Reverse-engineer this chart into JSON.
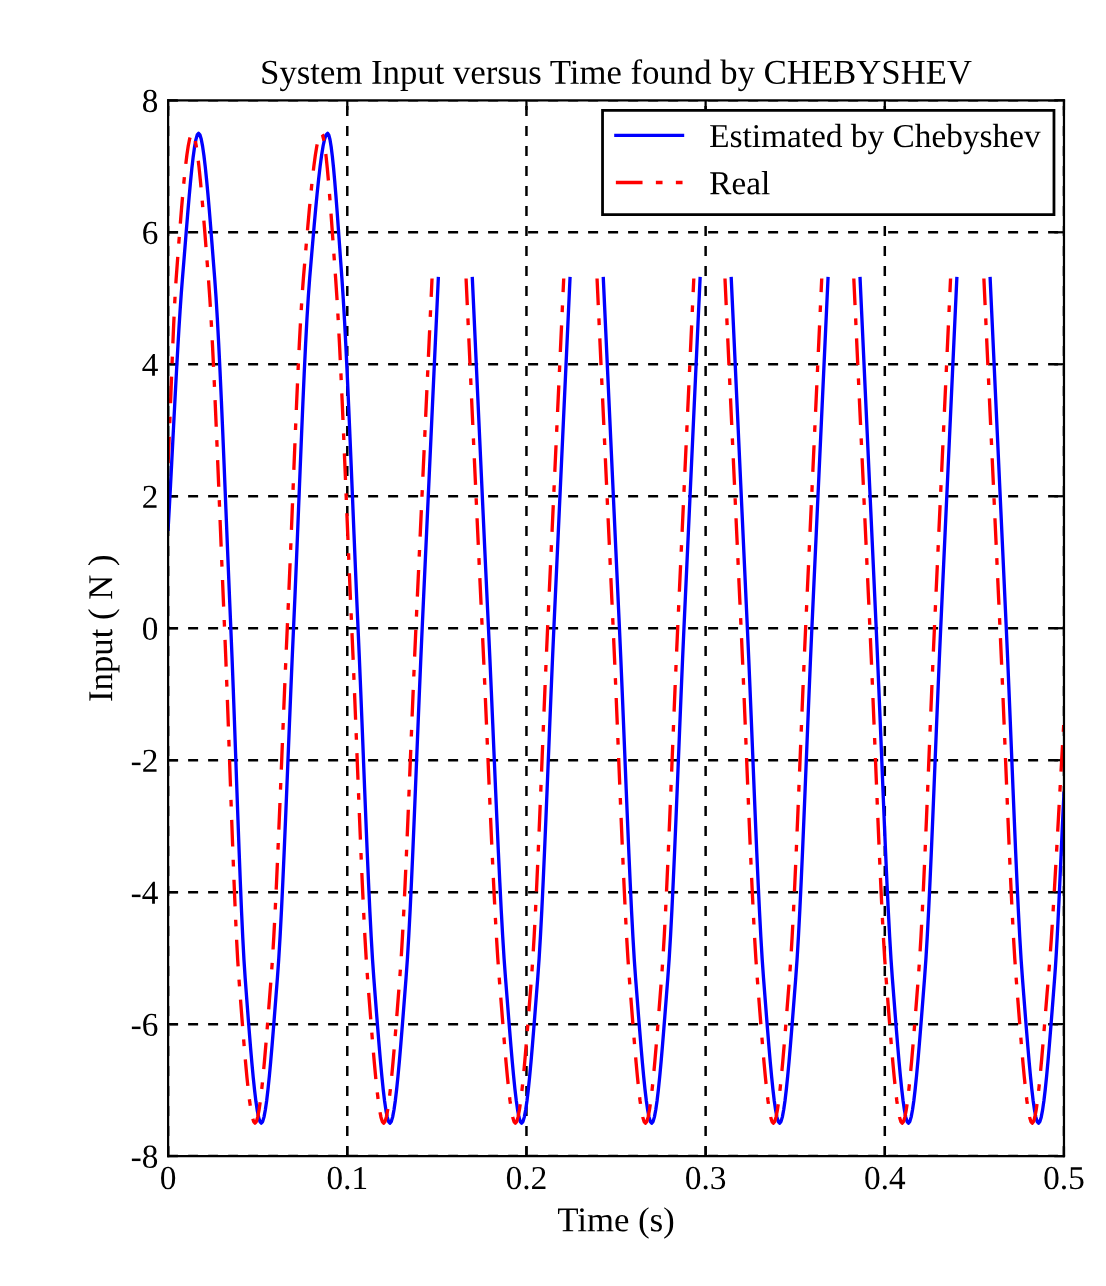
{
  "chart_data": {
    "type": "line",
    "title": "System Input versus Time found by CHEBYSHEV",
    "xlabel": "Time (s)",
    "ylabel": "Input ( N )",
    "xlim": [
      0,
      0.5
    ],
    "xticks": [
      0,
      0.1,
      0.2,
      0.3,
      0.4,
      0.5
    ],
    "ylim": [
      -8,
      8
    ],
    "yticks": [
      -8,
      -6,
      -4,
      -2,
      0,
      2,
      4,
      6,
      8
    ],
    "grid": true,
    "legend": "top right",
    "series": [
      {
        "name": "Estimated by Chebyshev",
        "color": "#0000ff",
        "line_style": "solid",
        "x": [
          0.0,
          0.008,
          0.017,
          0.026,
          0.035,
          0.043,
          0.052,
          0.061,
          0.07,
          0.079,
          0.089,
          0.097,
          0.106,
          0.1148,
          0.1238,
          0.1328,
          0.1418,
          0.1508,
          0.1605,
          0.1698,
          0.1788,
          0.1883,
          0.1973,
          0.2063,
          0.2153,
          0.2243,
          0.2335,
          0.2429,
          0.2519,
          0.2609,
          0.2699,
          0.2789,
          0.2879,
          0.2969,
          0.3055,
          0.3143,
          0.3233,
          0.3323,
          0.3413,
          0.3503,
          0.3593,
          0.3683,
          0.3775,
          0.3862,
          0.3952,
          0.4042,
          0.4132,
          0.4222,
          0.4312,
          0.4402,
          0.4495,
          0.4588,
          0.4678,
          0.4768,
          0.4858,
          0.4948,
          0.5
        ],
        "values": [
          1.5,
          5.3,
          7.5,
          5.3,
          0,
          -5.3,
          -7.5,
          -5.3,
          0,
          5.3,
          7.5,
          5.3,
          0,
          -5.3,
          -7.5,
          -5.3,
          0,
          5.3,
          null,
          5.3,
          0,
          -5.3,
          -7.5,
          -5.3,
          0,
          5.3,
          null,
          5.3,
          0,
          -5.3,
          -7.5,
          -5.3,
          0,
          5.3,
          null,
          5.3,
          0,
          -5.3,
          -7.5,
          -5.3,
          0,
          5.3,
          null,
          5.3,
          0,
          -5.3,
          -7.5,
          -5.3,
          0,
          5.3,
          null,
          5.3,
          0,
          -5.3,
          -7.5,
          -5.3,
          -2.5
        ]
      },
      {
        "name": "Real",
        "color": "#ff0000",
        "line_style": "dashed",
        "x": [
          0.0,
          0.0045,
          0.0135,
          0.0225,
          0.0315,
          0.0395,
          0.0485,
          0.0575,
          0.0665,
          0.0755,
          0.0855,
          0.0935,
          0.1025,
          0.1113,
          0.1203,
          0.1293,
          0.1383,
          0.1473,
          0.157,
          0.1663,
          0.1753,
          0.1848,
          0.1938,
          0.2028,
          0.2118,
          0.2208,
          0.23,
          0.2394,
          0.2484,
          0.2574,
          0.2664,
          0.2754,
          0.2844,
          0.2934,
          0.302,
          0.3108,
          0.3198,
          0.3288,
          0.3378,
          0.3468,
          0.3558,
          0.3648,
          0.374,
          0.3827,
          0.3917,
          0.4007,
          0.4097,
          0.4187,
          0.4277,
          0.4367,
          0.446,
          0.4553,
          0.4643,
          0.4733,
          0.4823,
          0.4913,
          0.5
        ],
        "values": [
          2.5,
          5.3,
          7.5,
          5.3,
          0,
          -5.3,
          -7.5,
          -5.3,
          0,
          5.3,
          7.5,
          5.3,
          0,
          -5.3,
          -7.5,
          -5.3,
          0,
          5.3,
          null,
          5.3,
          0,
          -5.3,
          -7.5,
          -5.3,
          0,
          5.3,
          null,
          5.3,
          0,
          -5.3,
          -7.5,
          -5.3,
          0,
          5.3,
          null,
          5.3,
          0,
          -5.3,
          -7.5,
          -5.3,
          0,
          5.3,
          null,
          5.3,
          0,
          -5.3,
          -7.5,
          -5.3,
          0,
          5.3,
          null,
          5.3,
          0,
          -5.3,
          -7.5,
          -5.3,
          -1.4
        ]
      }
    ]
  }
}
